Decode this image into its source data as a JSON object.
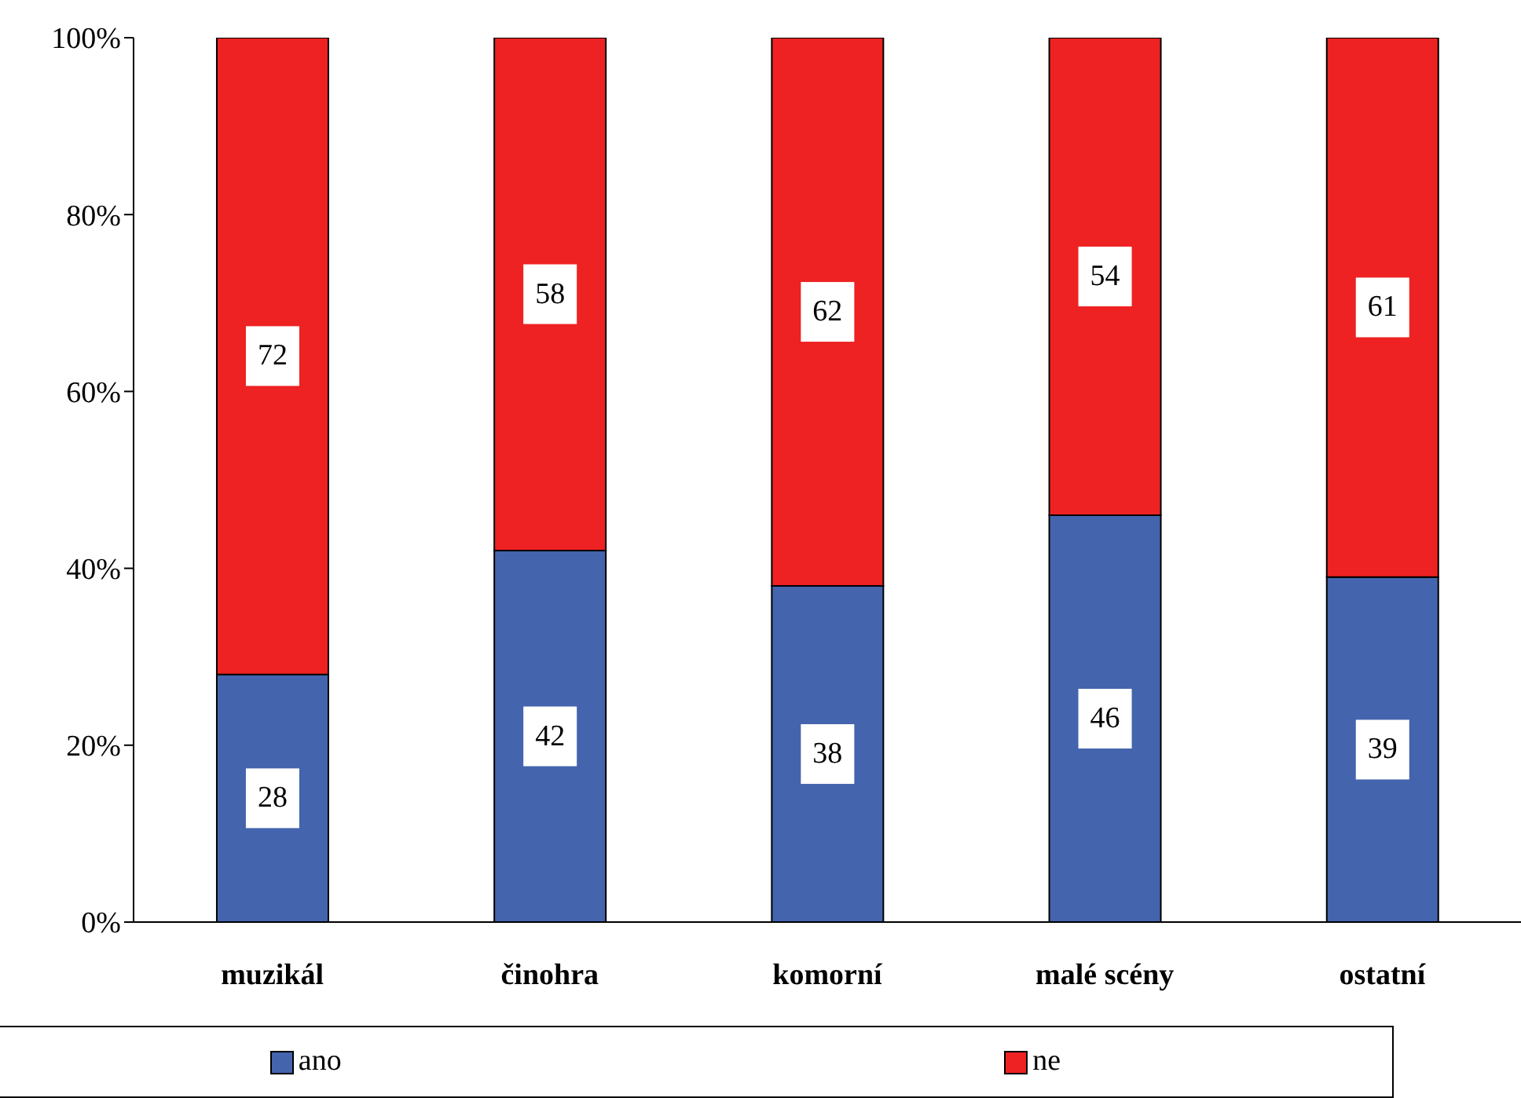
{
  "chart_data": {
    "type": "bar",
    "stacked": true,
    "categories": [
      "muzikál",
      "činohra",
      "komorní",
      "malé scény",
      "ostatní"
    ],
    "series": [
      {
        "name": "ano",
        "color": "#4464ad",
        "values": [
          28,
          42,
          38,
          46,
          39
        ]
      },
      {
        "name": "ne",
        "color": "#ee2222",
        "values": [
          72,
          58,
          62,
          54,
          61
        ]
      }
    ],
    "ylim": [
      0,
      100
    ],
    "yticks": [
      {
        "value": 0,
        "label": "0%"
      },
      {
        "value": 20,
        "label": "20%"
      },
      {
        "value": 40,
        "label": "40%"
      },
      {
        "value": 60,
        "label": "60%"
      },
      {
        "value": 80,
        "label": "80%"
      },
      {
        "value": 100,
        "label": "100%"
      }
    ],
    "data_labels": true,
    "legend": "bottom"
  }
}
